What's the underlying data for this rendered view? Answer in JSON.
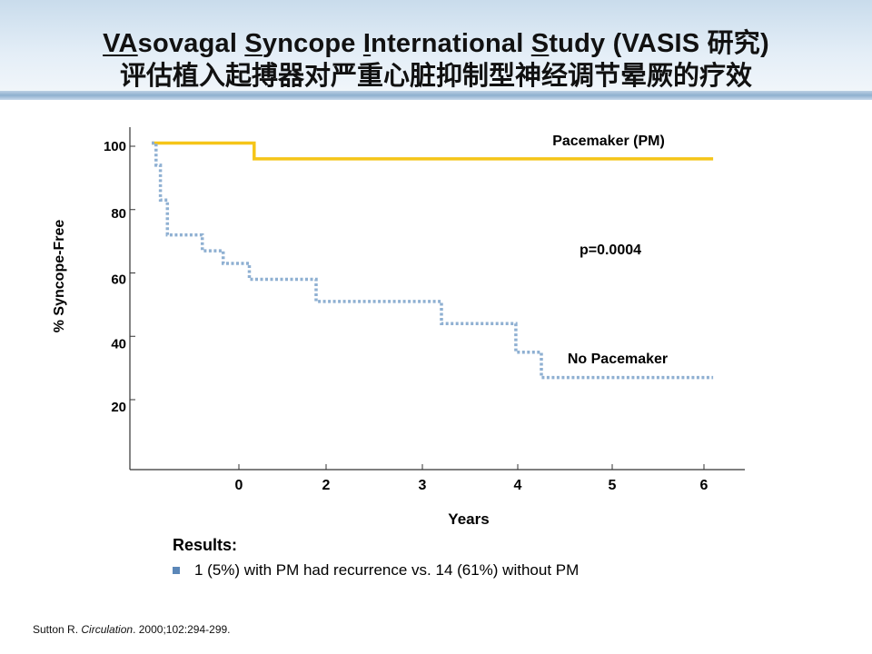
{
  "slide": {
    "title_line1_parts": [
      {
        "text": "VA",
        "underline": true
      },
      {
        "text": "sovagal ",
        "underline": false
      },
      {
        "text": "S",
        "underline": true
      },
      {
        "text": "yncope ",
        "underline": false
      },
      {
        "text": "I",
        "underline": true
      },
      {
        "text": "nternational ",
        "underline": false
      },
      {
        "text": "S",
        "underline": true
      },
      {
        "text": "tudy (VASIS 研究)",
        "underline": false
      }
    ],
    "title_line2": "评估植入起搏器对严重心脏抑制型神经调节晕厥的疗效",
    "results_title": "Results:",
    "results_item": "1 (5%) with PM had recurrence vs. 14 (61%) without PM",
    "citation_pre": "Sutton R. ",
    "citation_journal": "Circulation",
    "citation_post": ". 2000;102:294-299."
  },
  "colors": {
    "pacemaker": "#f5c518",
    "no_pacemaker": "#8fb0d2",
    "axis": "#333333",
    "bullet": "#5b87b8"
  },
  "chart_data": {
    "type": "line",
    "title": "",
    "xlabel": "Years",
    "ylabel": "% Syncope-Free",
    "x_tick_labels": [
      "0",
      "2",
      "3",
      "4",
      "5",
      "6"
    ],
    "y_tick_labels": [
      "100",
      "80",
      "60",
      "40",
      "20"
    ],
    "xlim": [
      -1,
      6.4
    ],
    "ylim": [
      0,
      105
    ],
    "grid": false,
    "annotations": [
      {
        "text": "Pacemaker (PM)",
        "series": 0
      },
      {
        "text": "p=0.0004"
      },
      {
        "text": "No Pacemaker",
        "series": 1
      }
    ],
    "series": [
      {
        "name": "Pacemaker (PM)",
        "style": "solid",
        "steps": [
          [
            -1,
            101
          ],
          [
            0.35,
            101
          ],
          [
            0.35,
            96
          ],
          [
            6.1,
            96
          ]
        ]
      },
      {
        "name": "No Pacemaker",
        "style": "dotted",
        "steps": [
          [
            -1,
            101
          ],
          [
            -0.95,
            101
          ],
          [
            -0.95,
            94
          ],
          [
            -0.9,
            94
          ],
          [
            -0.9,
            83
          ],
          [
            -0.82,
            83
          ],
          [
            -0.82,
            72
          ],
          [
            -0.42,
            72
          ],
          [
            -0.42,
            67
          ],
          [
            -0.18,
            67
          ],
          [
            -0.18,
            63
          ],
          [
            0.24,
            63
          ],
          [
            0.24,
            58
          ],
          [
            1.77,
            58
          ],
          [
            1.77,
            51
          ],
          [
            3.2,
            51
          ],
          [
            3.2,
            44
          ],
          [
            3.98,
            44
          ],
          [
            3.98,
            35
          ],
          [
            4.25,
            35
          ],
          [
            4.25,
            27
          ],
          [
            6.1,
            27
          ]
        ]
      }
    ]
  }
}
